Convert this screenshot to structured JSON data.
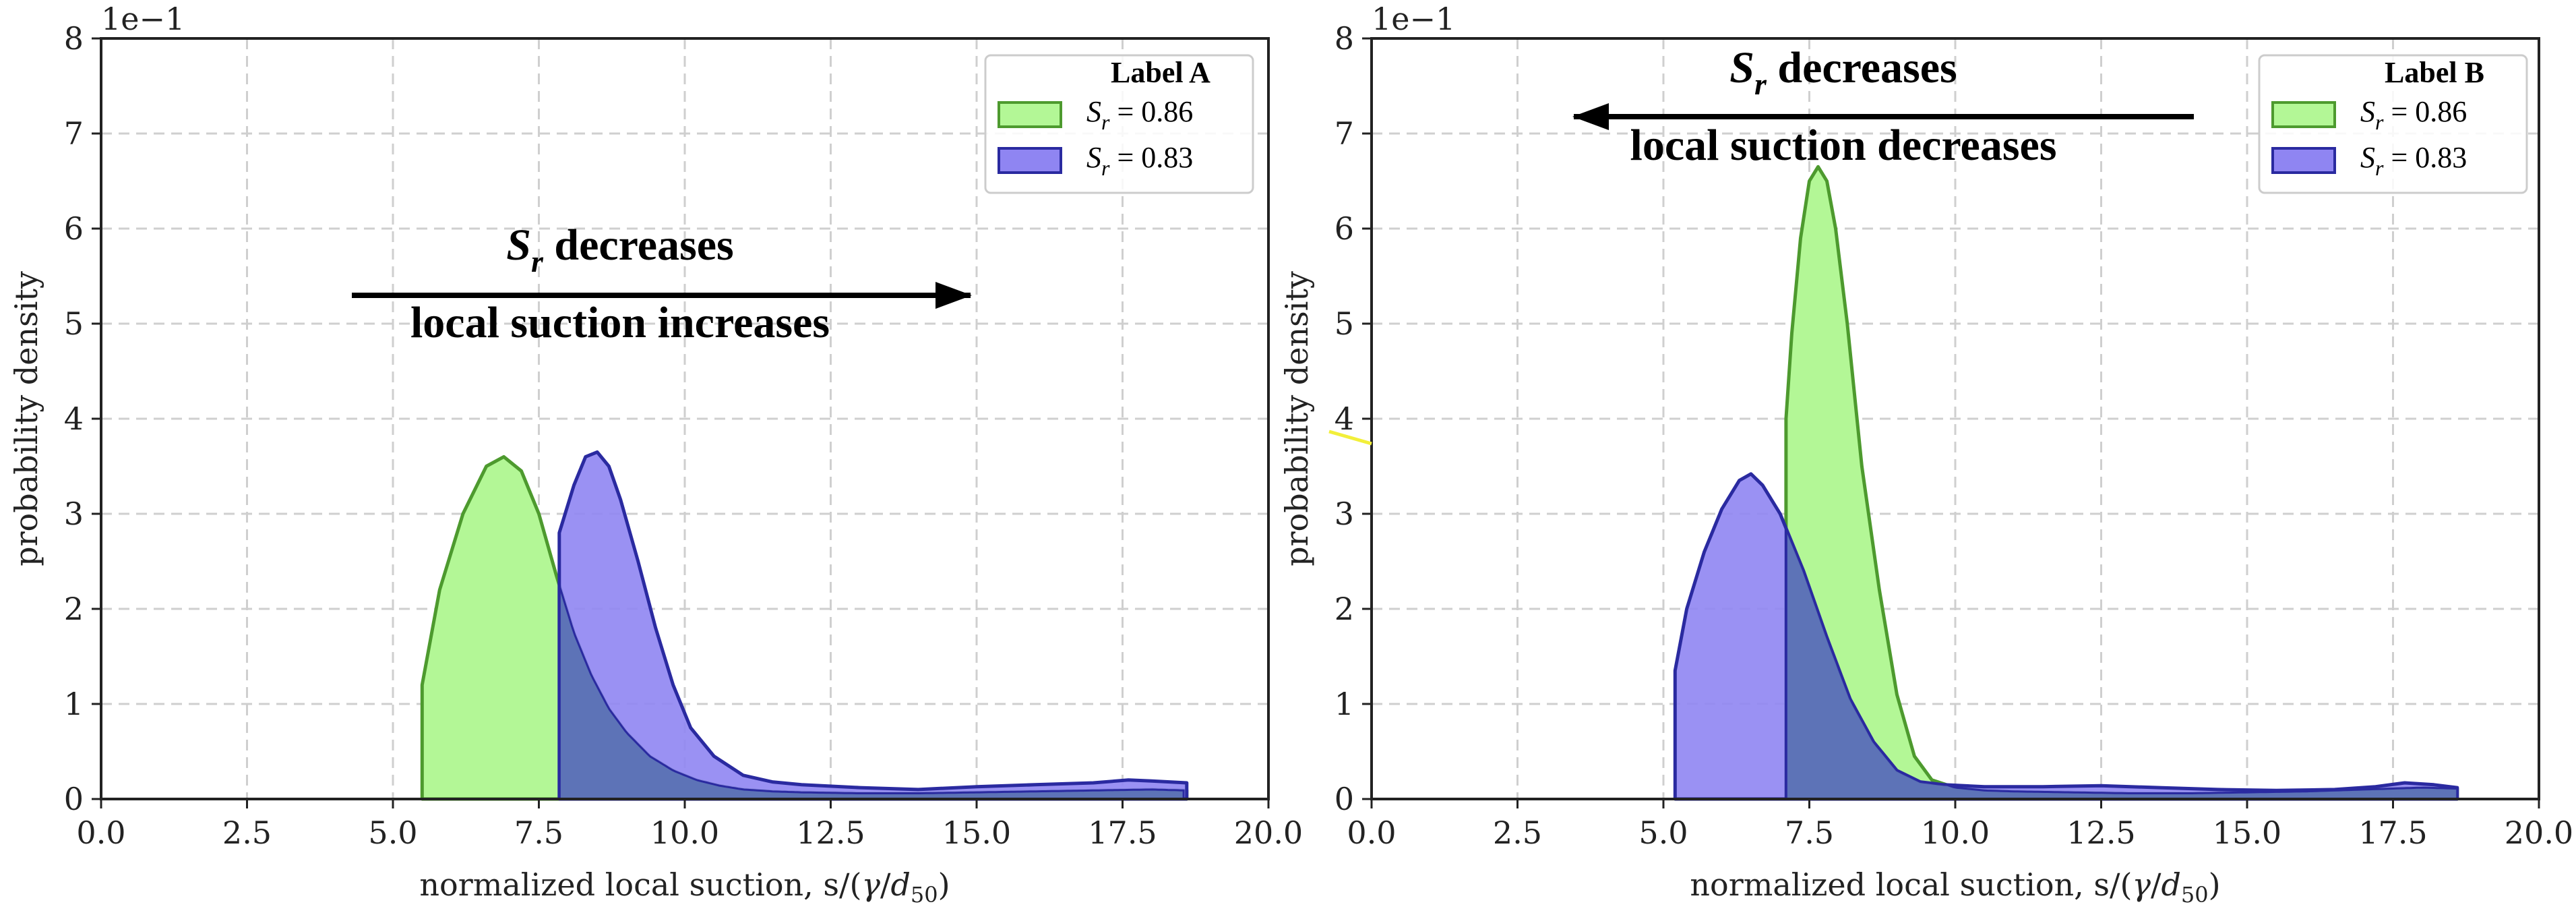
{
  "chart_data": [
    {
      "type": "area",
      "xlabel": "normalized local suction, s/(γ/d50)",
      "xlabel_main": "normalized local suction, s/(",
      "xlabel_gamma": "γ",
      "xlabel_d": "d",
      "xlabel_sub": "50",
      "xlabel_close": ")",
      "ylabel": "probability density",
      "y_multiplier": "1e−1",
      "xlim": [
        0,
        20
      ],
      "ylim": [
        0,
        8
      ],
      "xticks": [
        "0.0",
        "2.5",
        "5.0",
        "7.5",
        "10.0",
        "12.5",
        "15.0",
        "17.5",
        "20.0"
      ],
      "yticks": [
        "0",
        "1",
        "2",
        "3",
        "4",
        "5",
        "6",
        "7",
        "8"
      ],
      "grid": true,
      "legend_position": "top-right",
      "legend_title": "Label A",
      "annotation": {
        "line1_symbol": "S",
        "line1_sub": "r",
        "line1_text": " decreases",
        "line2": "local suction increases",
        "arrow_direction": "right"
      },
      "series": [
        {
          "name": "Sr = 0.86",
          "sym": "S",
          "sub": "r",
          "value": " = 0.86",
          "color": "#b3f796",
          "edge": "#4d9a2e",
          "x": [
            5.5,
            5.8,
            6.2,
            6.6,
            6.9,
            7.2,
            7.5,
            7.8,
            8.1,
            8.4,
            8.7,
            9.0,
            9.4,
            9.8,
            10.2,
            10.6,
            11.0,
            11.5,
            12.0,
            13.0,
            14.0,
            15.0,
            16.0,
            17.0,
            18.0,
            18.6
          ],
          "y": [
            1.2,
            2.2,
            3.0,
            3.5,
            3.6,
            3.45,
            3.0,
            2.35,
            1.75,
            1.3,
            0.95,
            0.7,
            0.45,
            0.3,
            0.2,
            0.14,
            0.1,
            0.08,
            0.07,
            0.06,
            0.06,
            0.07,
            0.08,
            0.09,
            0.1,
            0.09
          ]
        },
        {
          "name": "Sr = 0.83",
          "sym": "S",
          "sub": "r",
          "value": " = 0.83",
          "color": "#8f85f2",
          "edge": "#2a2aa0",
          "x": [
            7.85,
            8.1,
            8.3,
            8.5,
            8.7,
            8.9,
            9.2,
            9.5,
            9.8,
            10.1,
            10.5,
            11.0,
            11.5,
            12.0,
            13.0,
            14.0,
            15.0,
            16.0,
            17.0,
            17.6,
            18.0,
            18.6
          ],
          "y": [
            2.8,
            3.3,
            3.6,
            3.65,
            3.5,
            3.15,
            2.5,
            1.8,
            1.2,
            0.75,
            0.45,
            0.25,
            0.18,
            0.15,
            0.12,
            0.1,
            0.13,
            0.15,
            0.17,
            0.2,
            0.19,
            0.17
          ]
        }
      ]
    },
    {
      "type": "area",
      "xlabel": "normalized local suction, s/(γ/d50)",
      "xlabel_main": "normalized local suction, s/(",
      "xlabel_gamma": "γ",
      "xlabel_d": "d",
      "xlabel_sub": "50",
      "xlabel_close": ")",
      "ylabel": "probability density",
      "y_multiplier": "1e−1",
      "xlim": [
        0,
        20
      ],
      "ylim": [
        0,
        8
      ],
      "xticks": [
        "0.0",
        "2.5",
        "5.0",
        "7.5",
        "10.0",
        "12.5",
        "15.0",
        "17.5",
        "20.0"
      ],
      "yticks": [
        "0",
        "1",
        "2",
        "3",
        "4",
        "5",
        "6",
        "7",
        "8"
      ],
      "grid": true,
      "legend_position": "top-right",
      "legend_title": "Label B",
      "annotation": {
        "line1_symbol": "S",
        "line1_sub": "r",
        "line1_text": " decreases",
        "line2": "local suction decreases",
        "arrow_direction": "left"
      },
      "series": [
        {
          "name": "Sr = 0.86",
          "sym": "S",
          "sub": "r",
          "value": " = 0.86",
          "color": "#b3f796",
          "edge": "#4d9a2e",
          "x": [
            7.1,
            7.2,
            7.35,
            7.5,
            7.65,
            7.8,
            7.95,
            8.15,
            8.4,
            8.7,
            9.0,
            9.3,
            9.6,
            10.0,
            10.5,
            11.0,
            12.0,
            13.0,
            14.0,
            15.0,
            16.0,
            17.0,
            18.0,
            18.6
          ],
          "y": [
            4.0,
            4.9,
            5.9,
            6.5,
            6.65,
            6.5,
            6.0,
            5.0,
            3.5,
            2.2,
            1.1,
            0.45,
            0.2,
            0.12,
            0.09,
            0.08,
            0.07,
            0.06,
            0.06,
            0.07,
            0.08,
            0.1,
            0.12,
            0.11
          ]
        },
        {
          "name": "Sr = 0.83",
          "sym": "S",
          "sub": "r",
          "value": " = 0.83",
          "color": "#8f85f2",
          "edge": "#2a2aa0",
          "x": [
            5.2,
            5.4,
            5.7,
            6.0,
            6.3,
            6.5,
            6.7,
            7.0,
            7.4,
            7.8,
            8.2,
            8.6,
            9.0,
            9.4,
            9.8,
            10.5,
            11.5,
            12.5,
            13.5,
            14.5,
            15.5,
            16.5,
            17.2,
            17.7,
            18.2,
            18.6
          ],
          "y": [
            1.35,
            2.0,
            2.6,
            3.05,
            3.35,
            3.42,
            3.3,
            3.0,
            2.4,
            1.7,
            1.05,
            0.6,
            0.3,
            0.18,
            0.15,
            0.13,
            0.13,
            0.14,
            0.12,
            0.1,
            0.09,
            0.1,
            0.13,
            0.17,
            0.15,
            0.12
          ]
        }
      ]
    }
  ]
}
